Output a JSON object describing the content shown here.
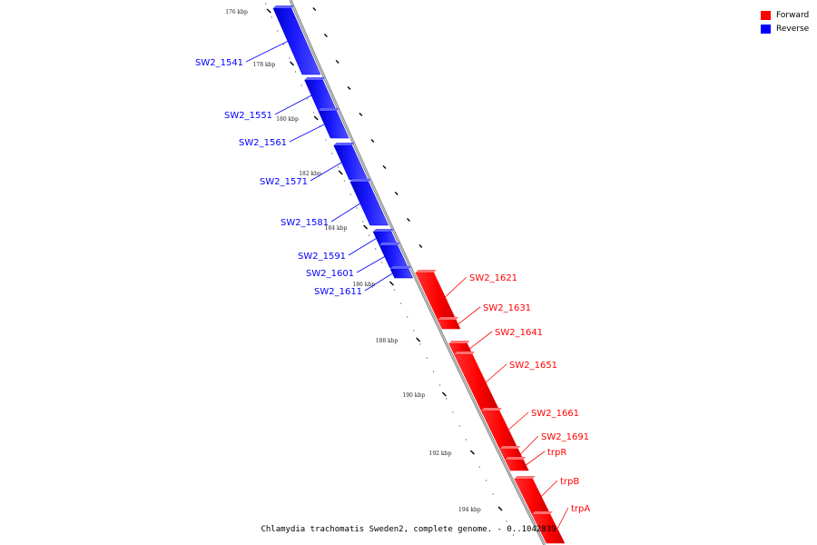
{
  "legend": {
    "forward_label": "Forward",
    "reverse_label": "Reverse",
    "forward_color": "#ff0000",
    "reverse_color": "#0000ff"
  },
  "caption": "Chlamydia trachomatis Sweden2, complete genome. - 0..1042839",
  "tick_labels": [
    "176 kbp",
    "178 kbp",
    "180 kbp",
    "182 kbp",
    "184 kbp",
    "186 kbp",
    "188 kbp",
    "190 kbp",
    "192 kbp",
    "194 kbp"
  ],
  "genes": [
    {
      "label": "SW2_1541",
      "strand": "reverse"
    },
    {
      "label": "SW2_1551",
      "strand": "reverse"
    },
    {
      "label": "SW2_1561",
      "strand": "reverse"
    },
    {
      "label": "SW2_1571",
      "strand": "reverse"
    },
    {
      "label": "SW2_1581",
      "strand": "reverse"
    },
    {
      "label": "SW2_1591",
      "strand": "reverse"
    },
    {
      "label": "SW2_1601",
      "strand": "reverse"
    },
    {
      "label": "SW2_1611",
      "strand": "reverse"
    },
    {
      "label": "SW2_1621",
      "strand": "forward"
    },
    {
      "label": "SW2_1631",
      "strand": "forward"
    },
    {
      "label": "SW2_1641",
      "strand": "forward"
    },
    {
      "label": "SW2_1651",
      "strand": "forward"
    },
    {
      "label": "SW2_1661",
      "strand": "forward"
    },
    {
      "label": "SW2_1691",
      "strand": "forward"
    },
    {
      "label": "trpR",
      "strand": "forward"
    },
    {
      "label": "trpB",
      "strand": "forward"
    },
    {
      "label": "trpA",
      "strand": "forward"
    }
  ]
}
